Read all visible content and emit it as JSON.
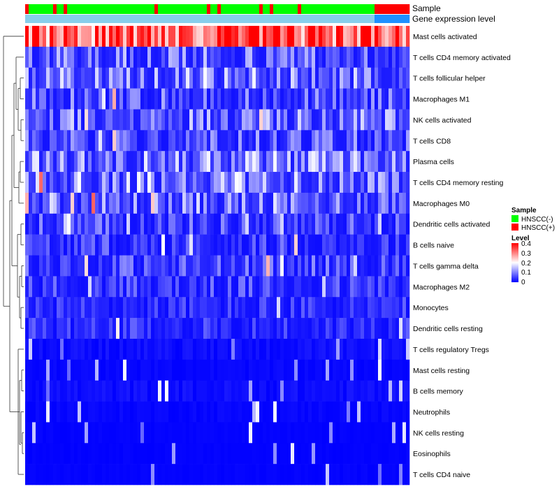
{
  "chart_data": {
    "type": "heatmap",
    "track_labels": [
      "Sample",
      "Gene expression level"
    ],
    "rows": [
      "Mast cells activated",
      "T cells CD4 memory activated",
      "T cells follicular helper",
      "Macrophages M1",
      "NK cells activated",
      "T cells CD8",
      "Plasma cells",
      "T cells CD4 memory resting",
      "Macrophages M0",
      "Dendritic cells activated",
      "B cells naive",
      "T cells gamma delta",
      "Macrophages M2",
      "Monocytes",
      "Dendritic cells resting",
      "T cells regulatory  Tregs",
      "Mast cells resting",
      "B cells memory",
      "Neutrophils",
      "NK cells resting",
      "Eosinophils",
      "T cells CD4 naive"
    ],
    "row_mean_level": [
      0.32,
      0.08,
      0.1,
      0.07,
      0.09,
      0.07,
      0.1,
      0.1,
      0.09,
      0.06,
      0.05,
      0.06,
      0.05,
      0.04,
      0.04,
      0.02,
      0.01,
      0.02,
      0.01,
      0.005,
      0.004,
      0.005
    ],
    "sample_groups": {
      "negative_fraction": 0.905,
      "positive_fraction_in_negative_region": 0.12
    },
    "expression_level_groups": {
      "low_fraction": 0.905
    },
    "legend": [
      {
        "title": "Sample",
        "items": [
          {
            "label": "HNSCC(-)",
            "color": "#00FF00"
          },
          {
            "label": "HNSCC(+)",
            "color": "#FF0000"
          }
        ]
      },
      {
        "title": "Level",
        "ticks": [
          "0.4",
          "0.3",
          "0.2",
          "0.1",
          "0"
        ],
        "range": [
          0,
          0.4
        ],
        "colors": [
          "#0000FF",
          "#FFFFFF",
          "#FF0000"
        ]
      }
    ],
    "colors": {
      "sample_negative": "#00FF00",
      "sample_positive": "#FF0000",
      "expression_low": "#87CEEB",
      "expression_high": "#1E90FF",
      "low": "#0000FF",
      "mid": "#FFFFFF",
      "high": "#FF0000"
    }
  }
}
